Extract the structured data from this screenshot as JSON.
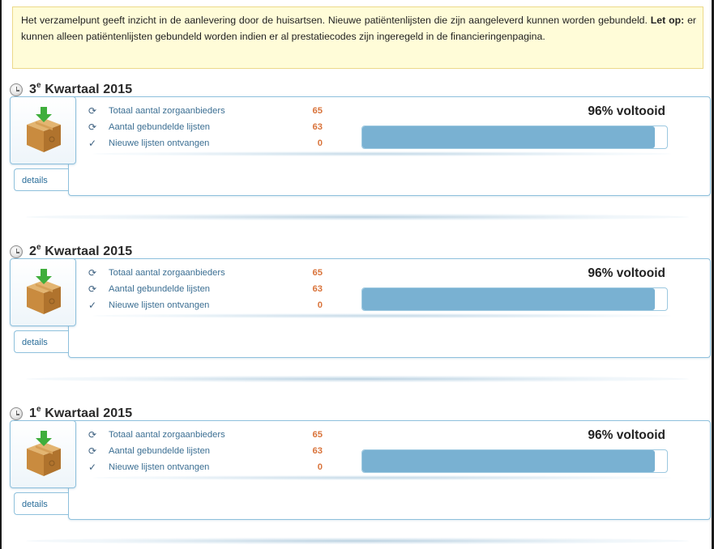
{
  "notice": {
    "text_before": "Het verzamelpunt geeft inzicht in de aanlevering door de huisartsen. Nieuwe patiëntenlijsten die zijn aangeleverd kunnen worden gebundeld. ",
    "bold": "Let op:",
    "text_after": " er kunnen alleen patiëntenlijsten gebundeld worden indien er al prestatiecodes zijn ingeregeld in de financieringenpagina."
  },
  "quarters": [
    {
      "number": "3",
      "superscript": "e",
      "title": "Kwartaal 2015",
      "percent_label": "96% voltooid",
      "progress": 0.96,
      "details_label": "details",
      "stats": [
        {
          "label": "Totaal aantal zorgaanbieders",
          "value": "65",
          "icon": "refresh-icon"
        },
        {
          "label": "Aantal gebundelde lijsten",
          "value": "63",
          "icon": "refresh-icon"
        },
        {
          "label": "Nieuwe lijsten ontvangen",
          "value": "0",
          "icon": "check-icon"
        }
      ]
    },
    {
      "number": "2",
      "superscript": "e",
      "title": "Kwartaal 2015",
      "percent_label": "96% voltooid",
      "progress": 0.96,
      "details_label": "details",
      "stats": [
        {
          "label": "Totaal aantal zorgaanbieders",
          "value": "65",
          "icon": "refresh-icon"
        },
        {
          "label": "Aantal gebundelde lijsten",
          "value": "63",
          "icon": "refresh-icon"
        },
        {
          "label": "Nieuwe lijsten ontvangen",
          "value": "0",
          "icon": "check-icon"
        }
      ]
    },
    {
      "number": "1",
      "superscript": "e",
      "title": "Kwartaal 2015",
      "percent_label": "96% voltooid",
      "progress": 0.96,
      "details_label": "details",
      "stats": [
        {
          "label": "Totaal aantal zorgaanbieders",
          "value": "65",
          "icon": "refresh-icon"
        },
        {
          "label": "Aantal gebundelde lijsten",
          "value": "63",
          "icon": "refresh-icon"
        },
        {
          "label": "Nieuwe lijsten ontvangen",
          "value": "0",
          "icon": "check-icon"
        }
      ]
    }
  ],
  "colors": {
    "notice_bg": "#fffcd8",
    "panel_border": "#8ec0dc",
    "progress_fill": "#79b1d2",
    "value_text": "#d9733a",
    "label_text": "#3c6f93"
  }
}
